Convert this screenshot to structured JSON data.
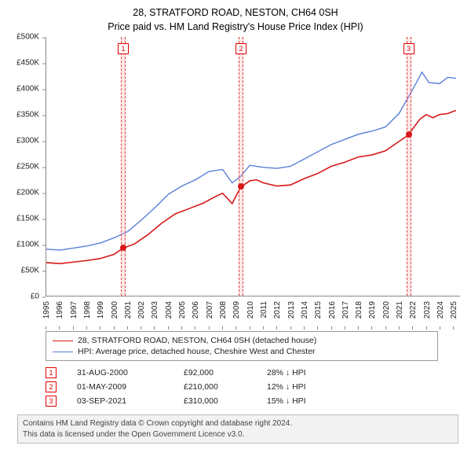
{
  "title": {
    "line1": "28, STRATFORD ROAD, NESTON, CH64 0SH",
    "line2": "Price paid vs. HM Land Registry's House Price Index (HPI)",
    "fontsize": 12.5,
    "color": "#000000"
  },
  "chart": {
    "type": "line",
    "background_color": "#ffffff",
    "axis_color": "#888888",
    "tick_fontsize": 10,
    "ylim": [
      0,
      500000
    ],
    "ytick_step": 50000,
    "yticks": [
      "£0",
      "£50K",
      "£100K",
      "£150K",
      "£200K",
      "£250K",
      "£300K",
      "£350K",
      "£400K",
      "£450K",
      "£500K"
    ],
    "xlim": [
      1995,
      2025.5
    ],
    "xticks": [
      1995,
      1996,
      1997,
      1998,
      1999,
      2000,
      2001,
      2002,
      2003,
      2004,
      2005,
      2006,
      2007,
      2008,
      2009,
      2010,
      2011,
      2012,
      2013,
      2014,
      2015,
      2016,
      2017,
      2018,
      2019,
      2020,
      2021,
      2022,
      2023,
      2024,
      2025
    ],
    "series": [
      {
        "name": "price_paid",
        "label": "28, STRATFORD ROAD, NESTON, CH64 0SH (detached house)",
        "color": "#d81818",
        "line_width": 1.6,
        "data": [
          [
            1995.0,
            64000
          ],
          [
            1996.0,
            62000
          ],
          [
            1997.0,
            65000
          ],
          [
            1998.0,
            68000
          ],
          [
            1999.0,
            72000
          ],
          [
            2000.0,
            80000
          ],
          [
            2000.66,
            92000
          ],
          [
            2001.5,
            100000
          ],
          [
            2002.5,
            118000
          ],
          [
            2003.5,
            140000
          ],
          [
            2004.5,
            158000
          ],
          [
            2005.5,
            168000
          ],
          [
            2006.5,
            178000
          ],
          [
            2007.5,
            192000
          ],
          [
            2008.0,
            198000
          ],
          [
            2008.7,
            178000
          ],
          [
            2009.33,
            210000
          ],
          [
            2010.0,
            222000
          ],
          [
            2010.5,
            224000
          ],
          [
            2011.0,
            218000
          ],
          [
            2012.0,
            212000
          ],
          [
            2013.0,
            214000
          ],
          [
            2014.0,
            226000
          ],
          [
            2015.0,
            236000
          ],
          [
            2016.0,
            250000
          ],
          [
            2017.0,
            258000
          ],
          [
            2018.0,
            268000
          ],
          [
            2019.0,
            272000
          ],
          [
            2020.0,
            280000
          ],
          [
            2021.0,
            298000
          ],
          [
            2021.67,
            310000
          ],
          [
            2022.5,
            340000
          ],
          [
            2023.0,
            350000
          ],
          [
            2023.5,
            344000
          ],
          [
            2024.0,
            350000
          ],
          [
            2024.6,
            352000
          ],
          [
            2025.2,
            358000
          ]
        ]
      },
      {
        "name": "hpi",
        "label": "HPI: Average price, detached house, Cheshire West and Chester",
        "color": "#5a7fd8",
        "line_width": 1.4,
        "data": [
          [
            1995.0,
            90000
          ],
          [
            1996.0,
            88000
          ],
          [
            1997.0,
            92000
          ],
          [
            1998.0,
            96000
          ],
          [
            1999.0,
            102000
          ],
          [
            2000.0,
            112000
          ],
          [
            2001.0,
            124000
          ],
          [
            2002.0,
            146000
          ],
          [
            2003.0,
            170000
          ],
          [
            2004.0,
            196000
          ],
          [
            2005.0,
            212000
          ],
          [
            2006.0,
            224000
          ],
          [
            2007.0,
            240000
          ],
          [
            2008.0,
            244000
          ],
          [
            2008.7,
            218000
          ],
          [
            2009.3,
            230000
          ],
          [
            2010.0,
            252000
          ],
          [
            2011.0,
            248000
          ],
          [
            2012.0,
            246000
          ],
          [
            2013.0,
            250000
          ],
          [
            2014.0,
            264000
          ],
          [
            2015.0,
            278000
          ],
          [
            2016.0,
            292000
          ],
          [
            2017.0,
            302000
          ],
          [
            2018.0,
            312000
          ],
          [
            2019.0,
            318000
          ],
          [
            2020.0,
            326000
          ],
          [
            2021.0,
            352000
          ],
          [
            2022.0,
            398000
          ],
          [
            2022.7,
            432000
          ],
          [
            2023.2,
            412000
          ],
          [
            2024.0,
            410000
          ],
          [
            2024.6,
            422000
          ],
          [
            2025.2,
            420000
          ]
        ]
      }
    ],
    "sales": [
      {
        "n": "1",
        "x": 2000.66,
        "date": "31-AUG-2000",
        "price": 92000,
        "price_label": "£92,000",
        "diff": "28% ↓ HPI"
      },
      {
        "n": "2",
        "x": 2009.33,
        "date": "01-MAY-2009",
        "price": 210000,
        "price_label": "£210,000",
        "diff": "12% ↓ HPI"
      },
      {
        "n": "3",
        "x": 2021.67,
        "date": "03-SEP-2021",
        "price": 310000,
        "price_label": "£310,000",
        "diff": "15% ↓ HPI"
      }
    ],
    "sale_band_color": "rgba(255,160,160,0.25)",
    "sale_band_border": "#e04040",
    "sale_point_color": "#d81818",
    "sale_marker_top": 8
  },
  "legend": {
    "border_color": "#999999",
    "fontsize": 10.5
  },
  "attribution": {
    "line1": "Contains HM Land Registry data © Crown copyright and database right 2024.",
    "line2": "This data is licensed under the Open Government Licence v3.0.",
    "background": "#f2f2f2",
    "border_color": "#bbbbbb",
    "fontsize": 10,
    "color": "#444444"
  }
}
